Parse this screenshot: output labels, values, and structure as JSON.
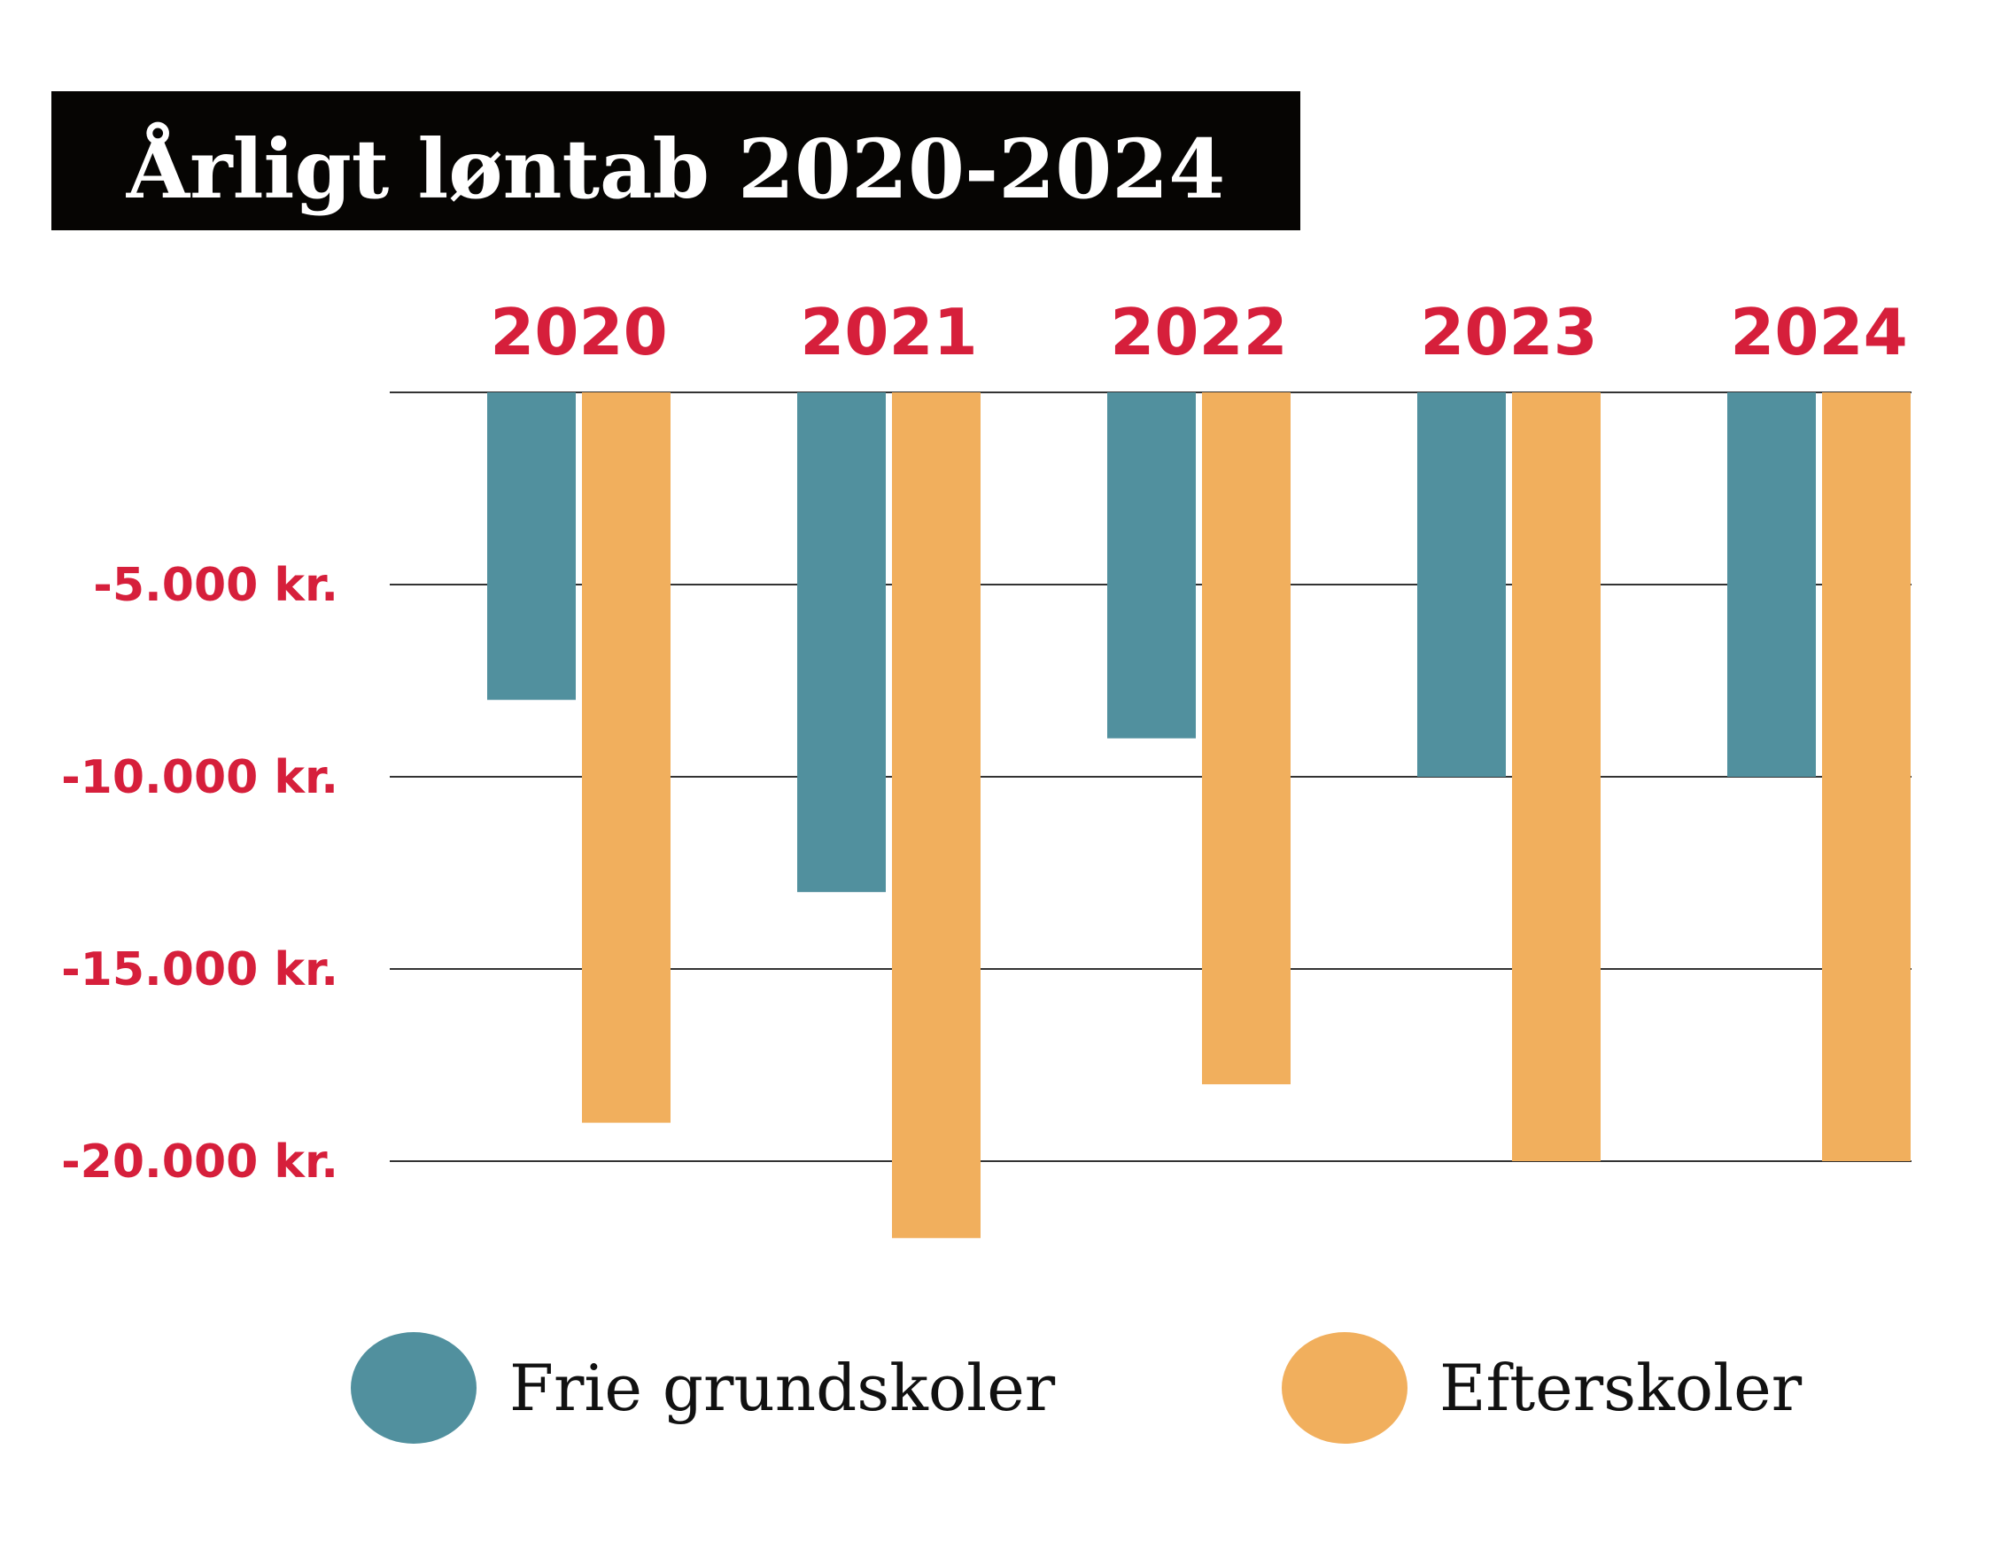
{
  "title": "Årligt løntab 2020-2024",
  "colors": {
    "title_bg": "#060503",
    "title_text": "#ffffff",
    "label": "#d61f3b",
    "frie_grundskoler": "#51909e",
    "efterskoler": "#f1af5d",
    "gridline": "#333333",
    "legend_text": "#111111"
  },
  "chart_data": {
    "type": "bar",
    "title": "Årligt løntab 2020-2024",
    "categories": [
      "2020",
      "2021",
      "2022",
      "2023",
      "2024"
    ],
    "series": [
      {
        "name": "Frie grundskoler",
        "values": [
          -8000,
          -13000,
          -9000,
          -10000,
          -10000
        ]
      },
      {
        "name": "Efterskoler",
        "values": [
          -19000,
          -22000,
          -18000,
          -20000,
          -20000
        ]
      }
    ],
    "yticks": [
      0,
      -5000,
      -10000,
      -15000,
      -20000
    ],
    "ytick_labels": [
      "",
      "-5.000 kr.",
      "-10.000 kr.",
      "-15.000 kr.",
      "-20.000 kr."
    ],
    "ylim": [
      -22000,
      0
    ],
    "grid": true,
    "xlabel": "",
    "ylabel": "",
    "legend_position": "bottom",
    "category_labels_position": "top"
  }
}
